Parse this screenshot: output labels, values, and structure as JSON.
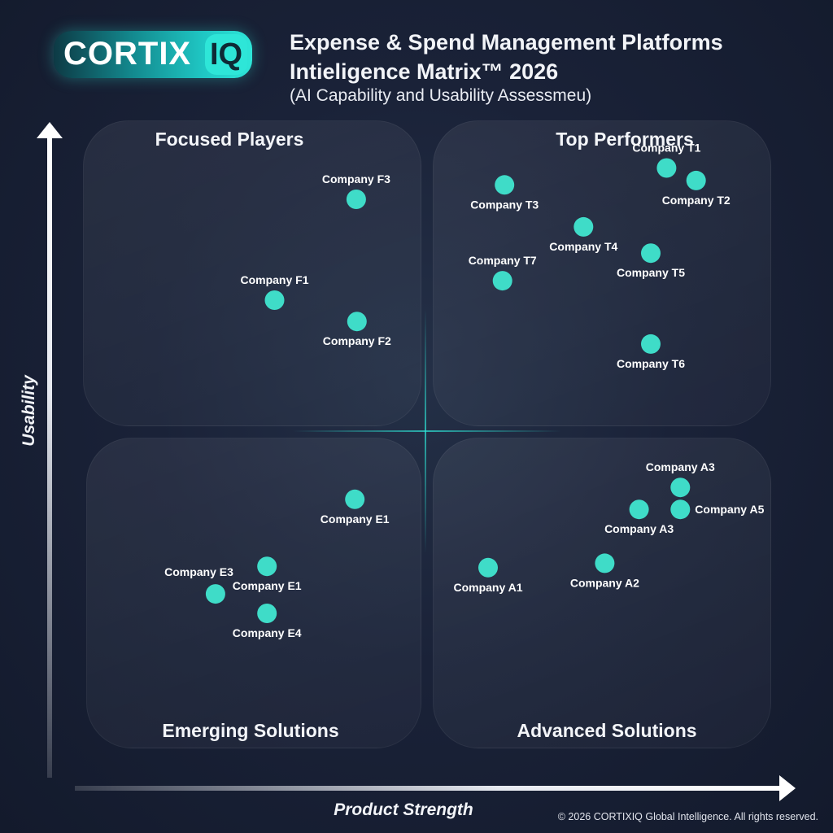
{
  "brand": {
    "name": "CORTIX",
    "badge": "IQ",
    "accent": "#2ee6d8"
  },
  "header": {
    "title_line1": "Expense & Spend Management Platforms",
    "title_line2": "Intieligence Matrix™ 2026",
    "subtitle": "(AI Capability and Usability Assessmeu)"
  },
  "footer": {
    "copyright": "© 2026 CORTIXIQ Global Intelligence. All rights reserved."
  },
  "chart_data": {
    "type": "scatter",
    "title": "Expense & Spend Management Platforms Intieligence Matrix™ 2026",
    "subtitle": "(AI Capability and Usability Assessmeu)",
    "xlabel": "Product Strength",
    "ylabel": "Usability",
    "xlim": [
      0,
      100
    ],
    "ylim": [
      0,
      100
    ],
    "grid": false,
    "dot_color": "#3fdcc8",
    "quadrants": {
      "top_left": "Focused Players",
      "top_right": "Top Performers",
      "bottom_left": "Emerging Solutions",
      "bottom_right": "Advanced Solutions"
    },
    "points": [
      {
        "label": "Company F3",
        "x": 39.8,
        "y": 87.4,
        "label_pos": "above"
      },
      {
        "label": "Company F1",
        "x": 27.9,
        "y": 71.3,
        "label_pos": "above"
      },
      {
        "label": "Company F2",
        "x": 39.9,
        "y": 67.9,
        "label_pos": "below"
      },
      {
        "label": "Company T1",
        "x": 85.0,
        "y": 92.4,
        "label_pos": "above"
      },
      {
        "label": "Company T2",
        "x": 89.3,
        "y": 90.4,
        "label_pos": "below"
      },
      {
        "label": "Company T3",
        "x": 61.4,
        "y": 89.7,
        "label_pos": "below"
      },
      {
        "label": "Company T4",
        "x": 72.9,
        "y": 83.0,
        "label_pos": "below"
      },
      {
        "label": "Company T5",
        "x": 82.7,
        "y": 78.8,
        "label_pos": "below"
      },
      {
        "label": "Company T7",
        "x": 61.1,
        "y": 74.4,
        "label_pos": "above"
      },
      {
        "label": "Company T6",
        "x": 82.7,
        "y": 64.3,
        "label_pos": "below"
      },
      {
        "label": "Company A3",
        "x": 87.0,
        "y": 41.4,
        "label_pos": "above"
      },
      {
        "label": "Company A5",
        "x": 87.0,
        "y": 37.9,
        "label_pos": "right"
      },
      {
        "label": "Company A3",
        "x": 81.0,
        "y": 37.9,
        "label_pos": "below"
      },
      {
        "label": "Company A1",
        "x": 59.0,
        "y": 28.6,
        "label_pos": "below"
      },
      {
        "label": "Company A2",
        "x": 76.0,
        "y": 29.3,
        "label_pos": "below"
      },
      {
        "label": "Company E1",
        "x": 39.6,
        "y": 39.5,
        "label_pos": "below"
      },
      {
        "label": "Company E1",
        "x": 26.8,
        "y": 28.8,
        "label_pos": "below"
      },
      {
        "label": "Company E3",
        "x": 19.3,
        "y": 24.4,
        "label_pos": "upper-left"
      },
      {
        "label": "Company E4",
        "x": 26.8,
        "y": 21.3,
        "label_pos": "below"
      }
    ]
  }
}
